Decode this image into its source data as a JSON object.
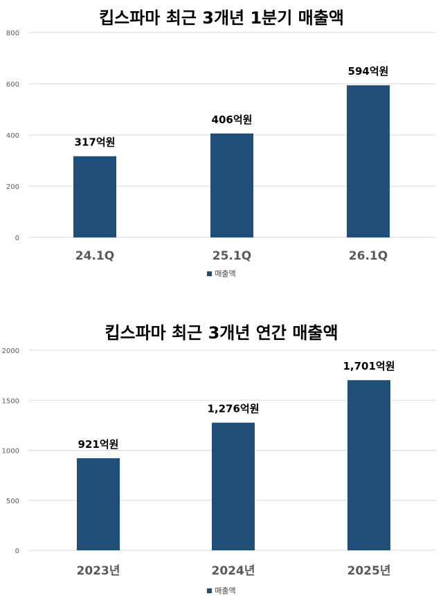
{
  "chart_data": [
    {
      "type": "bar",
      "title": "킵스파마 최근 3개년 1분기 매출액",
      "categories": [
        "24.1Q",
        "25.1Q",
        "26.1Q"
      ],
      "series": [
        {
          "name": "매출액",
          "values": [
            317,
            406,
            594
          ],
          "labels": [
            "317억원",
            "406억원",
            "594억원"
          ]
        }
      ],
      "ylim": [
        0,
        800
      ],
      "yticks": [
        "0",
        "200",
        "400",
        "600",
        "800"
      ],
      "grid": true,
      "legend_position": "bottom",
      "color": "#1F4E79"
    },
    {
      "type": "bar",
      "title": "킵스파마 최근 3개년 연간 매출액",
      "categories": [
        "2023년",
        "2024년",
        "2025년"
      ],
      "series": [
        {
          "name": "매출액",
          "values": [
            921,
            1276,
            1701
          ],
          "labels": [
            "921억원",
            "1,276억원",
            "1,701억원"
          ]
        }
      ],
      "ylim": [
        0,
        2000
      ],
      "yticks": [
        "0",
        "500",
        "1000",
        "1500",
        "2000"
      ],
      "grid": true,
      "legend_position": "bottom",
      "color": "#1F4E79"
    }
  ]
}
